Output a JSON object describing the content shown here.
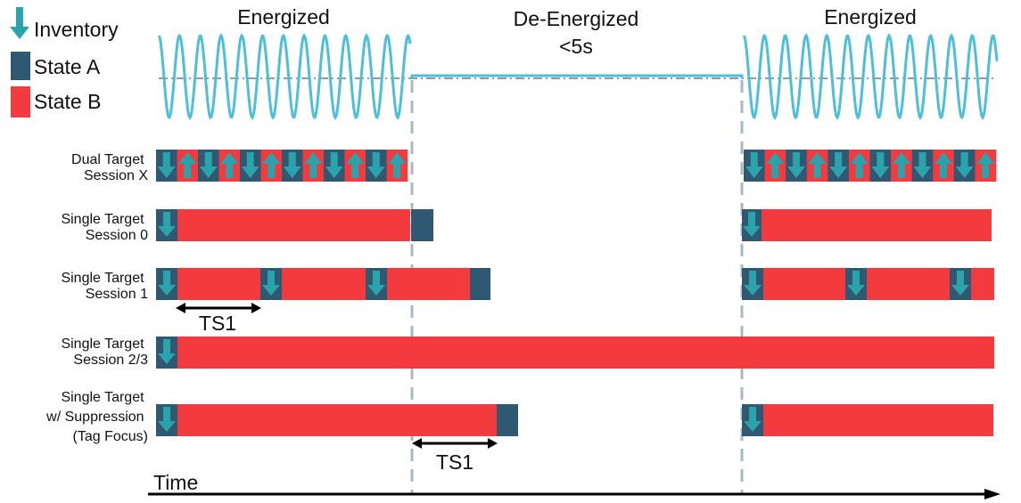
{
  "legend": {
    "items": [
      {
        "label": "Inventory",
        "icon": "down-arrow-icon"
      },
      {
        "label": "State A",
        "icon": "state-a-swatch"
      },
      {
        "label": "State B",
        "icon": "state-b-swatch"
      }
    ]
  },
  "phases": [
    {
      "title": "Energized",
      "subtitle": ""
    },
    {
      "title": "De-Energized",
      "subtitle": "<5s"
    },
    {
      "title": "Energized",
      "subtitle": ""
    }
  ],
  "rows": [
    {
      "label_lines": [
        "Dual Target",
        "Session X"
      ]
    },
    {
      "label_lines": [
        "Single Target",
        "Session 0"
      ]
    },
    {
      "label_lines": [
        "Single Target",
        "Session 1"
      ]
    },
    {
      "label_lines": [
        "Single Target",
        "Session 2/3"
      ]
    },
    {
      "label_lines": [
        "Single Target",
        "w/ Suppression",
        "(Tag Focus)"
      ]
    }
  ],
  "annotations": {
    "ts1_first": "TS1",
    "ts1_second": "TS1"
  },
  "time_axis": {
    "label": "Time"
  },
  "colors": {
    "state_a": "#2f5873",
    "state_b": "#f23a3f",
    "inventory_arrow": "#2ba3aa",
    "waveform": "#4dbfd8",
    "boundary": "#a9b9bf",
    "axis": "#000000"
  }
}
